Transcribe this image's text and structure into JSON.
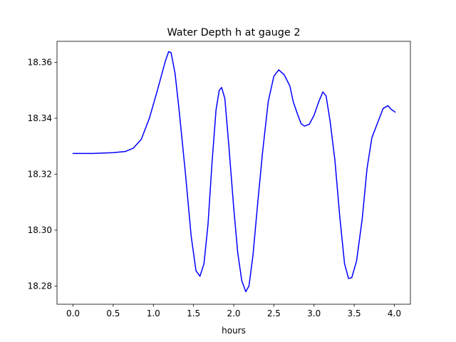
{
  "chart_data": {
    "type": "line",
    "title": "Water Depth h at gauge 2",
    "xlabel": "hours",
    "ylabel": "",
    "xlim": [
      -0.2,
      4.2
    ],
    "ylim": [
      18.2735,
      18.3675
    ],
    "xticks": [
      0.0,
      0.5,
      1.0,
      1.5,
      2.0,
      2.5,
      3.0,
      3.5,
      4.0
    ],
    "xtick_labels": [
      "0.0",
      "0.5",
      "1.0",
      "1.5",
      "2.0",
      "2.5",
      "3.0",
      "3.5",
      "4.0"
    ],
    "yticks": [
      18.28,
      18.3,
      18.32,
      18.34,
      18.36
    ],
    "ytick_labels": [
      "18.28",
      "18.30",
      "18.32",
      "18.34",
      "18.36"
    ],
    "grid": false,
    "legend": "none",
    "series": [
      {
        "color": "#0000ff",
        "points": [
          [
            0.0,
            18.3274
          ],
          [
            0.25,
            18.3274
          ],
          [
            0.5,
            18.3277
          ],
          [
            0.65,
            18.3281
          ],
          [
            0.75,
            18.3293
          ],
          [
            0.85,
            18.3325
          ],
          [
            0.95,
            18.34
          ],
          [
            1.05,
            18.35
          ],
          [
            1.15,
            18.3605
          ],
          [
            1.19,
            18.3638
          ],
          [
            1.22,
            18.3635
          ],
          [
            1.27,
            18.356
          ],
          [
            1.32,
            18.343
          ],
          [
            1.4,
            18.32
          ],
          [
            1.47,
            18.298
          ],
          [
            1.53,
            18.2855
          ],
          [
            1.58,
            18.2835
          ],
          [
            1.63,
            18.288
          ],
          [
            1.68,
            18.302
          ],
          [
            1.73,
            18.324
          ],
          [
            1.78,
            18.343
          ],
          [
            1.82,
            18.35
          ],
          [
            1.85,
            18.351
          ],
          [
            1.89,
            18.347
          ],
          [
            1.94,
            18.33
          ],
          [
            2.0,
            18.308
          ],
          [
            2.05,
            18.292
          ],
          [
            2.1,
            18.282
          ],
          [
            2.15,
            18.278
          ],
          [
            2.19,
            18.28
          ],
          [
            2.24,
            18.291
          ],
          [
            2.3,
            18.31
          ],
          [
            2.36,
            18.328
          ],
          [
            2.43,
            18.346
          ],
          [
            2.5,
            18.355
          ],
          [
            2.56,
            18.3573
          ],
          [
            2.63,
            18.3555
          ],
          [
            2.7,
            18.3515
          ],
          [
            2.74,
            18.346
          ],
          [
            2.8,
            18.341
          ],
          [
            2.84,
            18.338
          ],
          [
            2.88,
            18.3372
          ],
          [
            2.94,
            18.3378
          ],
          [
            3.0,
            18.341
          ],
          [
            3.06,
            18.346
          ],
          [
            3.11,
            18.3494
          ],
          [
            3.15,
            18.348
          ],
          [
            3.2,
            18.339
          ],
          [
            3.26,
            18.325
          ],
          [
            3.32,
            18.305
          ],
          [
            3.38,
            18.288
          ],
          [
            3.43,
            18.2827
          ],
          [
            3.47,
            18.283
          ],
          [
            3.53,
            18.289
          ],
          [
            3.6,
            18.304
          ],
          [
            3.66,
            18.322
          ],
          [
            3.72,
            18.333
          ],
          [
            3.8,
            18.339
          ],
          [
            3.86,
            18.3435
          ],
          [
            3.92,
            18.3445
          ],
          [
            3.96,
            18.3432
          ],
          [
            4.01,
            18.3422
          ]
        ]
      }
    ]
  }
}
